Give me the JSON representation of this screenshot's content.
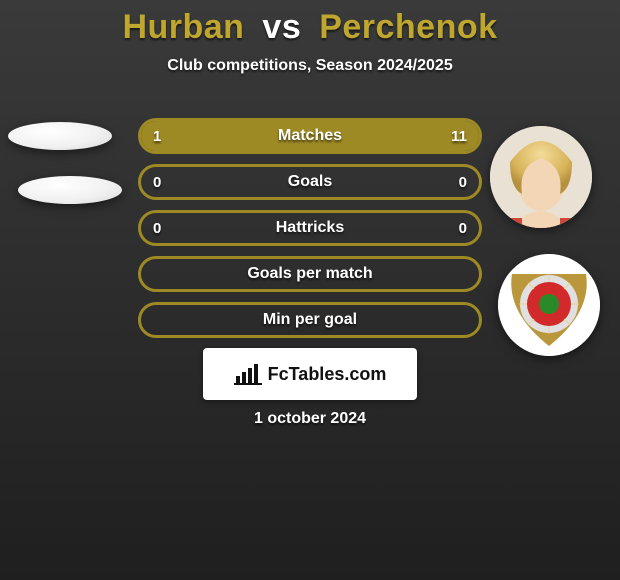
{
  "background": {
    "gradient_top": "#3a3a3a",
    "gradient_bottom": "#1f1f1f"
  },
  "title": {
    "player1": "Hurban",
    "vs": "vs",
    "player2": "Perchenok",
    "player1_color": "#bfa62f",
    "vs_color": "#ffffff",
    "player2_color": "#bfa62f",
    "fontsize": 34
  },
  "subtitle": {
    "text": "Club competitions, Season 2024/2025",
    "color": "#ffffff",
    "fontsize": 16
  },
  "accent_color": "#9e8a24",
  "pill_border_width": 3,
  "pill_bg": "transparent",
  "stats": [
    {
      "label": "Matches",
      "left_val": "1",
      "right_val": "11",
      "left_pct": 8,
      "right_pct": 92,
      "show_vals": true
    },
    {
      "label": "Goals",
      "left_val": "0",
      "right_val": "0",
      "left_pct": 0,
      "right_pct": 0,
      "show_vals": true
    },
    {
      "label": "Hattricks",
      "left_val": "0",
      "right_val": "0",
      "left_pct": 0,
      "right_pct": 0,
      "show_vals": true
    },
    {
      "label": "Goals per match",
      "left_val": "",
      "right_val": "",
      "left_pct": 0,
      "right_pct": 0,
      "show_vals": false
    },
    {
      "label": "Min per goal",
      "left_val": "",
      "right_val": "",
      "left_pct": 0,
      "right_pct": 0,
      "show_vals": false
    }
  ],
  "avatars": {
    "left1_name": "player1-headshot-placeholder",
    "left2_name": "player1-club-crest-placeholder",
    "right1_name": "player2-headshot",
    "right2_name": "player2-club-crest",
    "right2_crest_colors": {
      "outer": "#b9973a",
      "ring": "#e0e0e0",
      "inner": "#d22a2a",
      "center": "#2a8a2a"
    }
  },
  "branding": {
    "text": "FcTables.com",
    "bar_color": "#111111",
    "bg": "#ffffff"
  },
  "date": {
    "text": "1 october 2024",
    "color": "#ffffff"
  }
}
